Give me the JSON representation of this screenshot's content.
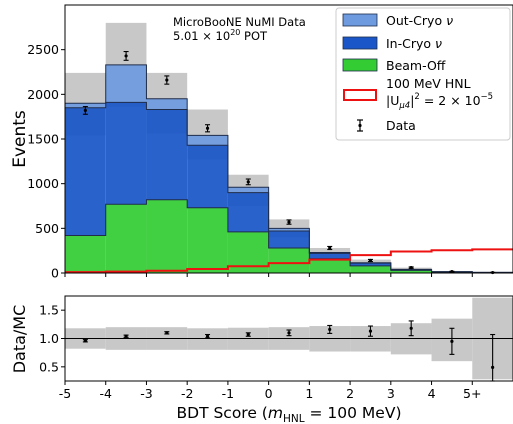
{
  "annotation": {
    "line1": "MicroBooNE NuMI Data",
    "line2": "5.01 × 10",
    "line2_exp": "20",
    "line2_suffix": " POT"
  },
  "colors": {
    "out_cryo": "#6e9be0",
    "in_cryo": "#1a56c8",
    "beam_off": "#33cc33",
    "hnl": "#ee1111",
    "data": "#000000",
    "uncertainty": "#c8c8c8",
    "edge": "#1f2d4a"
  },
  "chart_data": [
    {
      "type": "bar",
      "subtype": "stacked-histogram",
      "bin_edges": [
        -5,
        -4,
        -3,
        -2,
        -1,
        0,
        1,
        2,
        3,
        4,
        5,
        6
      ],
      "xtick_labels": [
        "-5",
        "-4",
        "-3",
        "-2",
        "-1",
        "0",
        "1",
        "2",
        "3",
        "4",
        "5+"
      ],
      "xlabel_main": "BDT Score (",
      "xlabel_sym": "m",
      "xlabel_sub": "HNL",
      "xlabel_tail": " = 100 MeV)",
      "ylabel": "Events",
      "ylim": [
        0,
        3000
      ],
      "yticks": [
        0,
        500,
        1000,
        1500,
        2000,
        2500
      ],
      "series": [
        {
          "name": "Beam-Off",
          "values": [
            420,
            770,
            820,
            730,
            460,
            280,
            160,
            80,
            30,
            10,
            5
          ]
        },
        {
          "name": "In-Cryo ν",
          "values": [
            1430,
            1140,
            1010,
            700,
            440,
            190,
            60,
            30,
            8,
            4,
            2
          ]
        },
        {
          "name": "Out-Cryo ν",
          "values": [
            50,
            420,
            120,
            110,
            60,
            30,
            10,
            5,
            2,
            1,
            0
          ]
        }
      ],
      "uncertainty_band": {
        "low": [
          1540,
          1860,
          1560,
          1270,
          750,
          400,
          140,
          80,
          20,
          5,
          0
        ],
        "high": [
          2240,
          2800,
          2240,
          1830,
          1100,
          600,
          280,
          150,
          60,
          20,
          10
        ]
      },
      "hnl": {
        "name": "100 MeV HNL",
        "name_line2_pre": "|U",
        "name_line2_sub": "μ4",
        "name_line2_exp": "2",
        "name_line2_post": " = 2 × 10",
        "name_line2_exp2": "−5",
        "values": [
          10,
          15,
          25,
          45,
          75,
          110,
          150,
          200,
          240,
          255,
          265
        ]
      },
      "data_points": {
        "name": "Data",
        "values": [
          1820,
          2430,
          2160,
          1620,
          1020,
          570,
          280,
          140,
          60,
          15,
          5
        ],
        "errors": [
          43,
          49,
          46,
          40,
          32,
          24,
          17,
          12,
          8,
          4,
          2
        ]
      },
      "legend_labels": {
        "out_cryo_pre": "Out-Cryo ",
        "in_cryo_pre": "In-Cryo ",
        "nu": "ν",
        "beam_off": "Beam-Off",
        "data": "Data"
      },
      "legend_position": "top-right"
    },
    {
      "type": "scatter",
      "subtype": "ratio",
      "ylabel": "Data/MC",
      "ylim": [
        0.25,
        1.75
      ],
      "yticks": [
        0.5,
        1.0,
        1.5
      ],
      "ytick_labels": [
        "0.5",
        "1.0",
        "1.5"
      ],
      "x_centers": [
        -4.5,
        -3.5,
        -2.5,
        -1.5,
        -0.5,
        0.5,
        1.5,
        2.5,
        3.5,
        4.5,
        5.5
      ],
      "values": [
        0.96,
        1.04,
        1.1,
        1.04,
        1.07,
        1.1,
        1.16,
        1.13,
        1.18,
        0.95,
        0.49
      ],
      "errors": [
        0.02,
        0.02,
        0.02,
        0.03,
        0.03,
        0.05,
        0.07,
        0.09,
        0.13,
        0.23,
        0.58
      ],
      "band_low": [
        0.82,
        0.8,
        0.8,
        0.8,
        0.8,
        0.8,
        0.77,
        0.77,
        0.72,
        0.6,
        0.28
      ],
      "band_high": [
        1.18,
        1.2,
        1.2,
        1.18,
        1.19,
        1.2,
        1.22,
        1.22,
        1.27,
        1.35,
        1.72
      ],
      "reference_line": 1.0
    }
  ]
}
